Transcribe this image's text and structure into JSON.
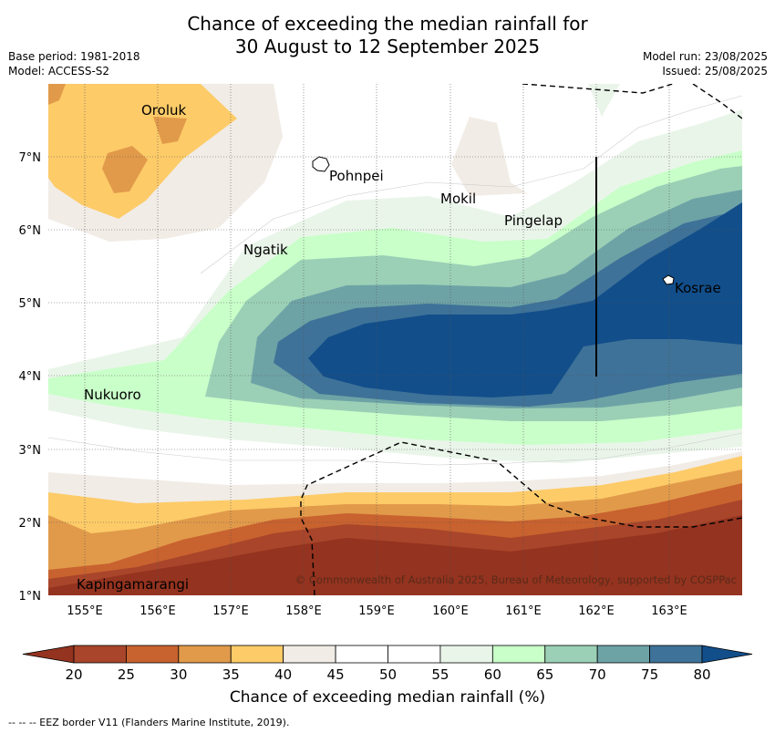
{
  "title": {
    "line1": "Chance of exceeding the median rainfall for",
    "line2": "30 August to 12 September 2025"
  },
  "meta": {
    "base_period": "Base period: 1981-2018",
    "model": "Model: ACCESS-S2",
    "model_run": "Model run: 23/08/2025",
    "issued": "Issued: 25/08/2025"
  },
  "map": {
    "lon_range": [
      154.5,
      164.0
    ],
    "lat_range": [
      1.0,
      8.0
    ],
    "lon_ticks": [
      "155°E",
      "156°E",
      "157°E",
      "158°E",
      "159°E",
      "160°E",
      "161°E",
      "162°E",
      "163°E"
    ],
    "lat_ticks": [
      "1°N",
      "2°N",
      "3°N",
      "4°N",
      "5°N",
      "6°N",
      "7°N"
    ],
    "places": [
      {
        "name": "Oroluk",
        "lon": 155.75,
        "lat": 7.65
      },
      {
        "name": "Pohnpei",
        "lon": 158.3,
        "lat": 6.85
      },
      {
        "name": "Mokil",
        "lon": 160.1,
        "lat": 6.5
      },
      {
        "name": "Pingelap",
        "lon": 160.8,
        "lat": 6.2
      },
      {
        "name": "Ngatik",
        "lon": 157.1,
        "lat": 5.8
      },
      {
        "name": "Kosrae",
        "lon": 163.0,
        "lat": 5.3
      },
      {
        "name": "Nukuoro",
        "lon": 154.95,
        "lat": 3.85
      },
      {
        "name": "Kapingamarangi",
        "lon": 154.85,
        "lat": 1.25
      }
    ],
    "copyright": "© Commonwealth of Australia 2025, Bureau of Meteorology, supported by COSPPac"
  },
  "colorbar": {
    "ticks": [
      "20",
      "25",
      "30",
      "35",
      "40",
      "45",
      "50",
      "55",
      "60",
      "65",
      "70",
      "75",
      "80"
    ],
    "colors": [
      "#a8452a",
      "#c8622f",
      "#e19a4a",
      "#fdcb68",
      "#f1ece6",
      "#ffffff",
      "#ffffff",
      "#eaf5ea",
      "#c9ffc9",
      "#9bd0b6",
      "#6ea3a6",
      "#3e7298"
    ],
    "under_color": "#94331f",
    "over_color": "#124e8a",
    "label": "Chance of exceeding median rainfall (%)"
  },
  "footnote": "--  --  -- EEZ border V11 (Flanders Marine Institute, 2019)."
}
